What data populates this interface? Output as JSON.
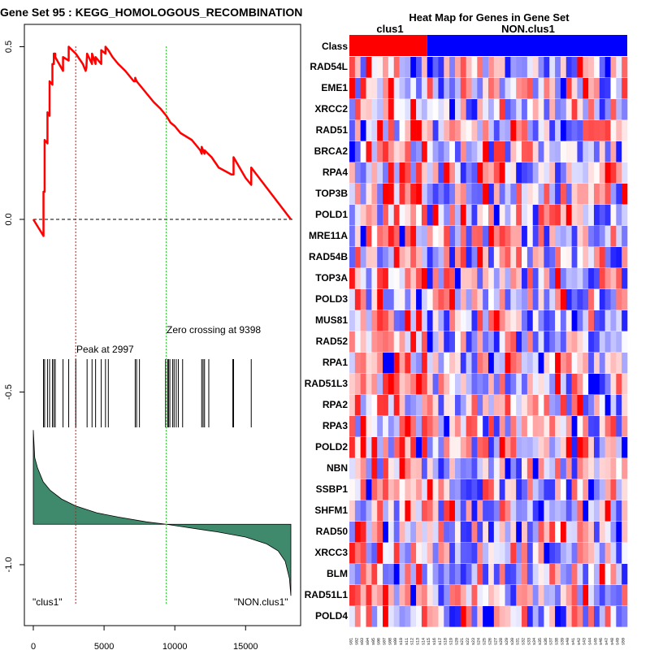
{
  "colors": {
    "es_line": "#ff0000",
    "peak_line": "#ff0000",
    "zero_cross_line": "#00cc00",
    "metric_fill": "#3f8a6c",
    "class_pos": "#ff0000",
    "class_neg": "#0000ff"
  },
  "chart_data": [
    {
      "type": "line",
      "title": "Gene Set  95 : KEGG_HOMOLOGOUS_RECOMBINATION",
      "xlabel": "",
      "ylabel": "",
      "xlim": [
        0,
        18500
      ],
      "ylim": [
        -1.1,
        0.52
      ],
      "x_ticks": [
        0,
        5000,
        10000,
        15000
      ],
      "x_tick_labels": [
        "0",
        "5000",
        "10000",
        "15000"
      ],
      "y_ticks": [
        0.5,
        0.0,
        -0.5,
        -1.0
      ],
      "y_tick_labels": [
        "0.5",
        "0.0",
        "-0.5",
        "-1.0"
      ],
      "running_es": {
        "name": "Enrichment score",
        "x": [
          0,
          720,
          720,
          800,
          800,
          1000,
          1000,
          1150,
          1150,
          1350,
          1350,
          1450,
          1450,
          1550,
          1550,
          2100,
          2100,
          2500,
          2500,
          2997,
          3000,
          3500,
          3700,
          3750,
          3800,
          4150,
          4150,
          4400,
          4400,
          4800,
          4800,
          5100,
          5100,
          5300,
          5300,
          5600,
          6000,
          6500,
          7100,
          7200,
          7200,
          7300,
          7300,
          7500,
          8100,
          8500,
          9000,
          9398,
          9700,
          10000,
          10400,
          11200,
          11800,
          11900,
          11900,
          12000,
          12000,
          12100,
          12100,
          12600,
          13100,
          14000,
          14150,
          14150,
          15000,
          15400,
          15400,
          18200
        ],
        "y": [
          0,
          -0.048,
          0.08,
          0.08,
          0.23,
          0.22,
          0.31,
          0.3,
          0.4,
          0.39,
          0.45,
          0.45,
          0.48,
          0.48,
          0.47,
          0.43,
          0.47,
          0.46,
          0.5,
          0.48,
          0.48,
          0.45,
          0.43,
          0.44,
          0.48,
          0.45,
          0.48,
          0.45,
          0.47,
          0.45,
          0.49,
          0.48,
          0.5,
          0.49,
          0.49,
          0.47,
          0.45,
          0.43,
          0.4,
          0.4,
          0.41,
          0.4,
          0.4,
          0.39,
          0.36,
          0.34,
          0.32,
          0.3,
          0.28,
          0.27,
          0.25,
          0.23,
          0.2,
          0.19,
          0.21,
          0.2,
          0.2,
          0.19,
          0.2,
          0.18,
          0.15,
          0.13,
          0.13,
          0.18,
          0.12,
          0.1,
          0.15,
          0.0
        ]
      },
      "zero_line": {
        "y": 0.0,
        "style": "dashed"
      },
      "peak": {
        "x": 2997,
        "label": "Peak at 2997"
      },
      "zero_crossing": {
        "x": 9398,
        "label": "Zero crossing at 9398"
      },
      "hit_positions": [
        720,
        800,
        1000,
        1150,
        1350,
        1450,
        1550,
        2100,
        2500,
        3000,
        3800,
        4150,
        4400,
        4800,
        5100,
        5300,
        7200,
        7300,
        7500,
        9350,
        9500,
        9550,
        9650,
        9850,
        9950,
        10100,
        10250,
        10550,
        11900,
        12000,
        12100,
        12400,
        14100,
        14150,
        15400
      ],
      "ranked_metric": {
        "description": "ranked list metric (filled area)",
        "x": [
          0,
          100,
          300,
          700,
          1200,
          2000,
          3000,
          4500,
          6000,
          8000,
          9398,
          11000,
          13000,
          15000,
          16500,
          17300,
          17800,
          18100,
          18200
        ],
        "y": [
          -0.61,
          -0.69,
          -0.72,
          -0.76,
          -0.785,
          -0.81,
          -0.83,
          -0.85,
          -0.862,
          -0.876,
          -0.883,
          -0.893,
          -0.905,
          -0.92,
          -0.94,
          -0.96,
          -0.99,
          -1.04,
          -1.09
        ],
        "baseline": -0.883
      },
      "class_labels": {
        "left": "\"clus1\"",
        "right": "\"NON.clus1\""
      }
    },
    {
      "type": "heatmap",
      "title": "Heat Map for Genes in Gene Set",
      "class_row_label": "Class",
      "class_groups": [
        {
          "name": "clus1",
          "count": 14
        },
        {
          "name": "NON.clus1",
          "count": 36
        }
      ],
      "genes": [
        "RAD54L",
        "EME1",
        "XRCC2",
        "RAD51",
        "BRCA2",
        "RPA4",
        "TOP3B",
        "POLD1",
        "MRE11A",
        "RAD54B",
        "TOP3A",
        "POLD3",
        "MUS81",
        "RAD52",
        "RPA1",
        "RAD51L3",
        "RPA2",
        "RPA3",
        "POLD2",
        "NBN",
        "SSBP1",
        "SHFM1",
        "RAD50",
        "XRCC3",
        "BLM",
        "RAD51L1",
        "POLD4"
      ],
      "sample_labels": [
        "s01",
        "s02",
        "s03",
        "s04",
        "s05",
        "s06",
        "s07",
        "s08",
        "s09",
        "s10",
        "s11",
        "s12",
        "s13",
        "s14",
        "s15",
        "s16",
        "s17",
        "s18",
        "s19",
        "s20",
        "s21",
        "s22",
        "s23",
        "s24",
        "s25",
        "s26",
        "s27",
        "s28",
        "s29",
        "s30",
        "s31",
        "s32",
        "s33",
        "s34",
        "s35",
        "s36",
        "s37",
        "s38",
        "s39",
        "s40",
        "s41",
        "s42",
        "s43",
        "s44",
        "s45",
        "s46",
        "s47",
        "s48",
        "s49",
        "s50"
      ],
      "value_range": [
        -1,
        1
      ],
      "color_scale": "blue-white-red"
    }
  ]
}
